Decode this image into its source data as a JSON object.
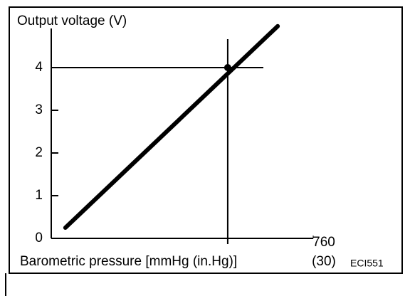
{
  "chart_data": {
    "type": "line",
    "title": "Output voltage (V)",
    "x_label": "Barometric pressure [mmHg (in.Hg)]",
    "x_secondary_tick_label": "(30)",
    "code": "ECI551",
    "xlim": [
      0,
      760
    ],
    "xticks": [
      760
    ],
    "ylim": [
      0,
      5
    ],
    "yticks": [
      0,
      1,
      2,
      3,
      4
    ],
    "series": [
      {
        "color": "#000000",
        "x": [
          41,
          657
        ],
        "values": [
          0.25,
          4.97
        ]
      }
    ],
    "reference": {
      "x": 512,
      "y": 4
    }
  }
}
